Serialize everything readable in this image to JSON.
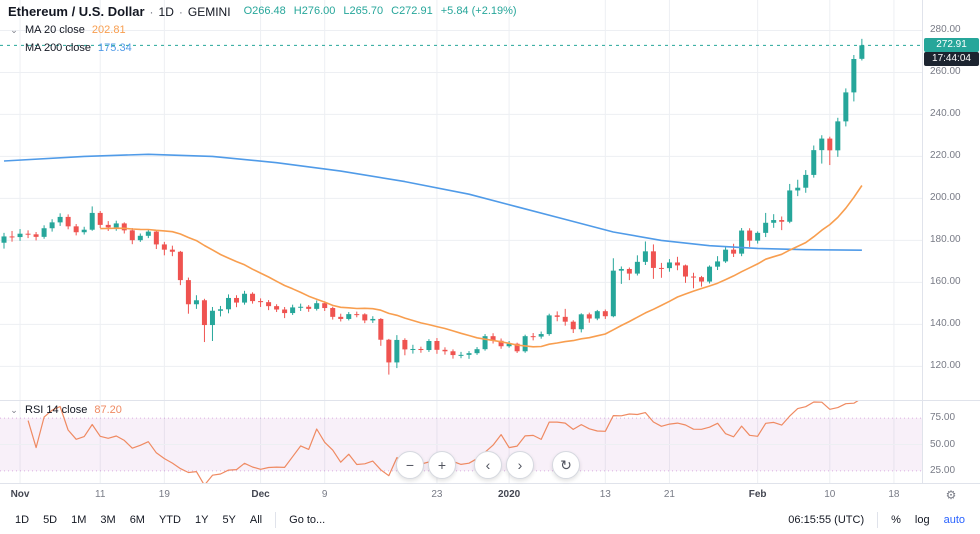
{
  "header": {
    "symbol": "Ethereum / U.S. Dollar",
    "separator": "·",
    "interval": "1D",
    "exchange": "GEMINI",
    "ohlc": [
      "O266.48",
      "H276.00",
      "L265.70",
      "C272.91"
    ],
    "change": "+5.84 (+2.19%)"
  },
  "legend": {
    "ma20": {
      "label": "MA 20 close",
      "value": "202.81",
      "color": "#f89e4f"
    },
    "ma200": {
      "label": "MA 200 close",
      "value": "175.34",
      "color": "#509be8"
    },
    "rsi": {
      "label": "RSI 14 close",
      "value": "87.20",
      "color": "#ef8a62"
    }
  },
  "icons": {
    "chevron_down": "⌄",
    "gear": "⚙"
  },
  "price_scale": {
    "ticks": [
      "280.00",
      "260.00",
      "240.00",
      "220.00",
      "200.00",
      "180.00",
      "160.00",
      "140.00",
      "120.00"
    ],
    "last_price_label": "272.91",
    "countdown": "17:44:04"
  },
  "rsi_scale": {
    "ticks": [
      "75.00",
      "50.00",
      "25.00"
    ]
  },
  "time_axis": {
    "ticks": [
      {
        "i": 2,
        "label": "Nov",
        "strong": true
      },
      {
        "i": 12,
        "label": "11"
      },
      {
        "i": 20,
        "label": "19"
      },
      {
        "i": 32,
        "label": "Dec",
        "strong": true
      },
      {
        "i": 40,
        "label": "9"
      },
      {
        "i": 54,
        "label": "23"
      },
      {
        "i": 63,
        "label": "2020",
        "strong": true
      },
      {
        "i": 75,
        "label": "13"
      },
      {
        "i": 83,
        "label": "21"
      },
      {
        "i": 94,
        "label": "Feb",
        "strong": true
      },
      {
        "i": 103,
        "label": "10"
      },
      {
        "i": 111,
        "label": "18"
      }
    ]
  },
  "nav": {
    "zoom_out": "−",
    "zoom_in": "+",
    "scroll_left": "‹",
    "scroll_right": "›",
    "reset": "↻"
  },
  "toolbar": {
    "ranges": [
      "1D",
      "5D",
      "1M",
      "3M",
      "6M",
      "YTD",
      "1Y",
      "5Y",
      "All"
    ],
    "goto": "Go to...",
    "clock": "06:15:55 (UTC)",
    "percent": "%",
    "log": "log",
    "auto": "auto",
    "auto_color": "#2962ff"
  },
  "theme": {
    "up": "#26a69a",
    "down": "#ef5350",
    "grid": "#edeff3",
    "band_fill": "rgba(156,39,176,0.07)",
    "band_line": "rgba(156,39,176,0.35)",
    "axis_text": "#787b86",
    "text": "#131722",
    "countdown_bg": "#1c2430"
  },
  "chart_data": [
    {
      "type": "candlestick",
      "title": "Ethereum / U.S. Dollar · 1D · GEMINI",
      "interval": "1D",
      "start_date": "2019-10-30",
      "slots": 115,
      "ylim": [
        104,
        294.5
      ],
      "last_price": 272.91,
      "candles": [
        [
          178.9,
          183.6,
          176.1,
          181.9
        ],
        [
          181.9,
          184.5,
          179.4,
          181.6
        ],
        [
          181.6,
          185.4,
          179.8,
          183.2
        ],
        [
          183.2,
          184.8,
          181.1,
          182.9
        ],
        [
          182.9,
          184.0,
          180.0,
          181.7
        ],
        [
          181.7,
          187.2,
          180.8,
          185.8
        ],
        [
          185.8,
          190.1,
          184.2,
          188.6
        ],
        [
          188.6,
          192.9,
          186.9,
          191.2
        ],
        [
          191.2,
          192.4,
          185.3,
          186.7
        ],
        [
          186.7,
          187.8,
          182.4,
          183.9
        ],
        [
          183.9,
          186.5,
          182.8,
          185.1
        ],
        [
          185.1,
          196.2,
          184.6,
          193.1
        ],
        [
          193.1,
          194.0,
          185.9,
          187.4
        ],
        [
          187.4,
          189.2,
          184.5,
          186.2
        ],
        [
          186.2,
          189.4,
          184.6,
          188.1
        ],
        [
          188.1,
          188.6,
          183.3,
          184.8
        ],
        [
          184.8,
          185.9,
          178.2,
          180.1
        ],
        [
          180.1,
          183.3,
          179.3,
          182.2
        ],
        [
          182.2,
          185.0,
          181.1,
          184.2
        ],
        [
          184.2,
          184.8,
          175.9,
          178.1
        ],
        [
          178.1,
          179.3,
          172.9,
          175.6
        ],
        [
          175.6,
          177.5,
          172.5,
          174.6
        ],
        [
          174.6,
          175.0,
          158.7,
          161.1
        ],
        [
          161.1,
          162.3,
          145.1,
          149.6
        ],
        [
          149.6,
          153.9,
          147.4,
          151.5
        ],
        [
          151.5,
          152.2,
          131.6,
          139.7
        ],
        [
          139.7,
          148.3,
          132.1,
          146.5
        ],
        [
          146.5,
          148.8,
          143.8,
          147.2
        ],
        [
          147.2,
          154.3,
          145.3,
          152.6
        ],
        [
          152.6,
          153.9,
          148.2,
          150.4
        ],
        [
          150.4,
          156.0,
          149.4,
          154.6
        ],
        [
          154.6,
          155.3,
          149.9,
          151.1
        ],
        [
          151.1,
          152.4,
          148.3,
          150.6
        ],
        [
          150.6,
          151.6,
          146.8,
          148.7
        ],
        [
          148.7,
          149.6,
          145.9,
          147.1
        ],
        [
          147.1,
          148.3,
          143.0,
          145.4
        ],
        [
          145.4,
          149.4,
          144.5,
          148.1
        ],
        [
          148.1,
          149.9,
          146.4,
          148.4
        ],
        [
          148.4,
          149.2,
          146.0,
          147.4
        ],
        [
          147.4,
          151.4,
          146.6,
          150.1
        ],
        [
          150.1,
          151.0,
          146.4,
          147.8
        ],
        [
          147.8,
          148.4,
          142.3,
          143.6
        ],
        [
          143.6,
          145.1,
          141.4,
          142.6
        ],
        [
          142.6,
          145.9,
          141.9,
          144.9
        ],
        [
          144.9,
          146.1,
          143.4,
          144.8
        ],
        [
          144.8,
          145.3,
          140.6,
          141.9
        ],
        [
          141.9,
          143.9,
          140.7,
          142.6
        ],
        [
          142.6,
          143.0,
          129.8,
          132.7
        ],
        [
          132.7,
          133.1,
          116.1,
          121.9
        ],
        [
          121.9,
          134.9,
          119.2,
          132.6
        ],
        [
          132.6,
          133.4,
          125.3,
          128.1
        ],
        [
          128.1,
          130.3,
          126.1,
          128.3
        ],
        [
          128.3,
          129.4,
          126.5,
          127.8
        ],
        [
          127.8,
          133.0,
          126.9,
          132.1
        ],
        [
          132.1,
          133.5,
          126.0,
          127.9
        ],
        [
          127.9,
          129.1,
          125.6,
          127.2
        ],
        [
          127.2,
          128.1,
          123.7,
          125.4
        ],
        [
          125.4,
          126.9,
          123.9,
          125.5
        ],
        [
          125.5,
          127.3,
          123.6,
          126.3
        ],
        [
          126.3,
          129.2,
          125.5,
          128.2
        ],
        [
          128.2,
          135.4,
          127.5,
          134.4
        ],
        [
          134.4,
          135.8,
          130.9,
          132.2
        ],
        [
          132.2,
          133.3,
          128.4,
          129.6
        ],
        [
          129.6,
          132.1,
          128.9,
          130.8
        ],
        [
          130.8,
          131.3,
          126.4,
          127.2
        ],
        [
          127.2,
          135.1,
          126.5,
          134.4
        ],
        [
          134.4,
          135.9,
          132.4,
          134.2
        ],
        [
          134.2,
          136.6,
          133.2,
          135.4
        ],
        [
          135.4,
          145.1,
          134.6,
          144.3
        ],
        [
          144.3,
          146.2,
          141.5,
          143.6
        ],
        [
          143.6,
          147.4,
          139.4,
          141.3
        ],
        [
          141.3,
          142.0,
          135.9,
          137.7
        ],
        [
          137.7,
          145.3,
          136.2,
          144.8
        ],
        [
          144.8,
          145.6,
          140.8,
          142.8
        ],
        [
          142.8,
          146.9,
          142.0,
          146.3
        ],
        [
          146.3,
          147.1,
          142.6,
          143.9
        ],
        [
          143.9,
          171.5,
          143.4,
          165.6
        ],
        [
          165.6,
          167.6,
          159.3,
          166.4
        ],
        [
          166.4,
          167.1,
          161.1,
          164.2
        ],
        [
          164.2,
          172.9,
          163.3,
          169.8
        ],
        [
          169.8,
          179.5,
          168.3,
          174.8
        ],
        [
          174.8,
          178.1,
          161.7,
          166.9
        ],
        [
          166.9,
          169.3,
          162.2,
          166.8
        ],
        [
          166.8,
          171.1,
          165.1,
          169.5
        ],
        [
          169.5,
          172.2,
          165.8,
          168.1
        ],
        [
          168.1,
          168.5,
          159.8,
          162.8
        ],
        [
          162.8,
          164.6,
          157.2,
          162.5
        ],
        [
          162.5,
          163.1,
          158.0,
          160.4
        ],
        [
          160.4,
          168.1,
          159.5,
          167.5
        ],
        [
          167.5,
          172.5,
          165.9,
          170.0
        ],
        [
          170.0,
          176.8,
          169.3,
          175.6
        ],
        [
          175.6,
          178.4,
          172.1,
          173.7
        ],
        [
          173.7,
          185.9,
          172.5,
          184.7
        ],
        [
          184.7,
          185.8,
          176.9,
          179.9
        ],
        [
          179.9,
          184.3,
          178.5,
          183.6
        ],
        [
          183.6,
          193.1,
          181.6,
          188.4
        ],
        [
          188.4,
          192.5,
          186.0,
          189.7
        ],
        [
          189.7,
          191.4,
          184.9,
          188.9
        ],
        [
          188.9,
          206.9,
          188.2,
          203.8
        ],
        [
          203.8,
          208.9,
          201.1,
          205.1
        ],
        [
          205.1,
          213.5,
          202.7,
          211.2
        ],
        [
          211.2,
          225.2,
          209.9,
          223.0
        ],
        [
          223.0,
          230.1,
          216.6,
          228.5
        ],
        [
          228.5,
          229.4,
          215.9,
          222.9
        ],
        [
          222.9,
          238.4,
          219.8,
          236.7
        ],
        [
          236.7,
          252.4,
          234.3,
          250.5
        ],
        [
          250.5,
          268.3,
          246.2,
          266.4
        ],
        [
          266.48,
          276.0,
          265.7,
          272.91
        ]
      ],
      "ma200_points": [
        [
          0,
          217.8
        ],
        [
          10,
          220
        ],
        [
          18,
          221
        ],
        [
          26,
          220
        ],
        [
          34,
          217
        ],
        [
          42,
          213
        ],
        [
          50,
          208
        ],
        [
          58,
          202
        ],
        [
          64,
          196
        ],
        [
          70,
          190
        ],
        [
          76,
          184
        ],
        [
          82,
          180
        ],
        [
          88,
          177.5
        ],
        [
          94,
          176.2
        ],
        [
          100,
          175.6
        ],
        [
          107,
          175.34
        ]
      ]
    },
    {
      "type": "line",
      "name": "RSI 14",
      "period": 14,
      "ylim": [
        13.5,
        91.3
      ],
      "band": [
        25,
        75
      ],
      "last_value": 87.2
    }
  ]
}
